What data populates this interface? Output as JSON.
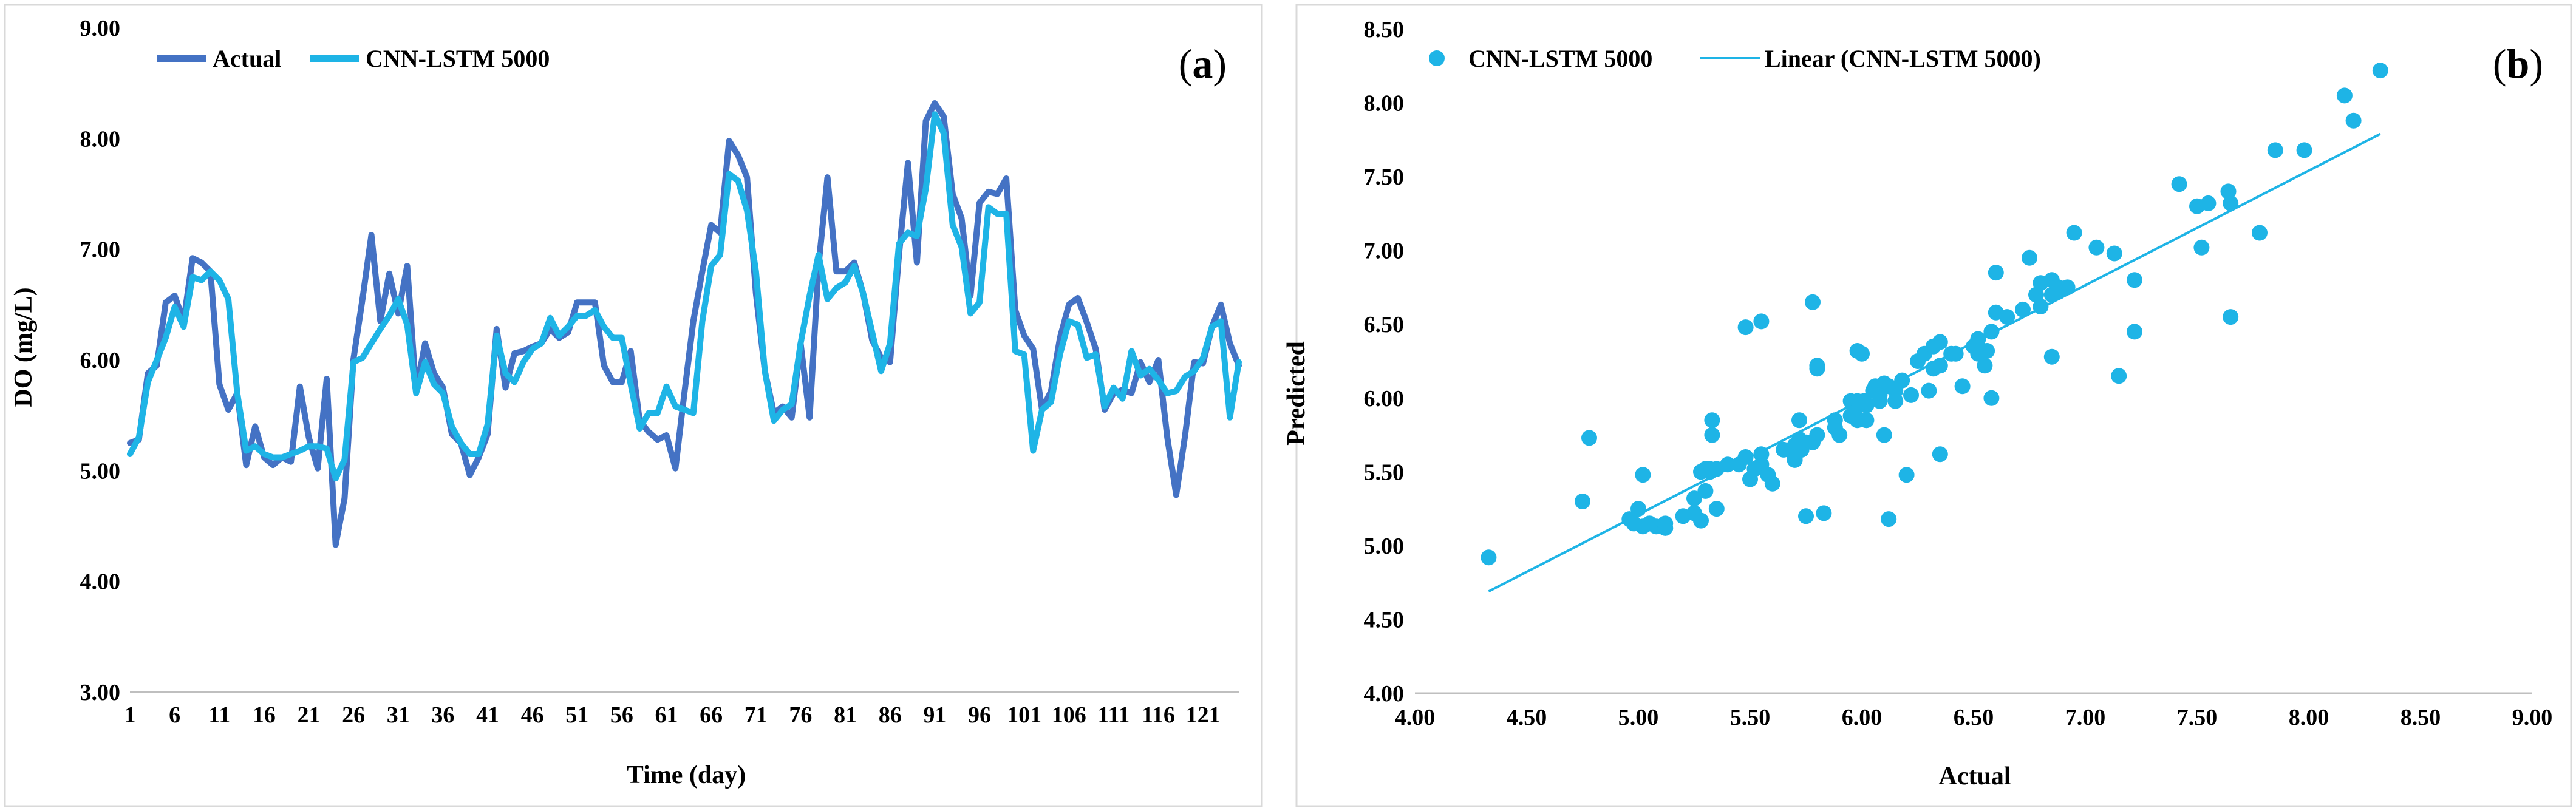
{
  "panels": [
    {
      "label_prefix": "(",
      "label_letter": "a",
      "label_suffix": ")",
      "chart_ref": 0
    },
    {
      "label_prefix": "(",
      "label_letter": "b",
      "label_suffix": ")",
      "chart_ref": 1
    }
  ],
  "chart_data": [
    {
      "type": "line",
      "title": "",
      "xlabel": "Time (day)",
      "ylabel": "DO (mg/L)",
      "ylim": [
        3.0,
        9.0
      ],
      "yticks": [
        "3.00",
        "4.00",
        "5.00",
        "6.00",
        "7.00",
        "8.00",
        "9.00"
      ],
      "xticks": [
        "1",
        "6",
        "11",
        "16",
        "21",
        "26",
        "31",
        "36",
        "41",
        "46",
        "51",
        "56",
        "61",
        "66",
        "71",
        "76",
        "81",
        "86",
        "91",
        "96",
        "101",
        "106",
        "111",
        "116",
        "121"
      ],
      "x_start": 1,
      "x_end": 125,
      "legend": "top-left",
      "series": [
        {
          "name": "Actual",
          "color": "#4472C4",
          "values": [
            5.25,
            5.28,
            5.88,
            5.95,
            6.52,
            6.58,
            6.35,
            6.92,
            6.88,
            6.8,
            5.78,
            5.55,
            5.7,
            5.05,
            5.4,
            5.12,
            5.05,
            5.12,
            5.08,
            5.76,
            5.3,
            5.02,
            5.83,
            4.33,
            4.75,
            6.01,
            6.55,
            7.13,
            6.35,
            6.78,
            6.42,
            6.85,
            5.72,
            6.15,
            5.88,
            5.75,
            5.33,
            5.25,
            4.96,
            5.12,
            5.33,
            6.28,
            5.75,
            6.06,
            6.08,
            6.12,
            6.15,
            6.28,
            6.2,
            6.25,
            6.52,
            6.52,
            6.52,
            5.95,
            5.8,
            5.8,
            6.08,
            5.45,
            5.35,
            5.28,
            5.32,
            5.02,
            5.7,
            6.35,
            6.8,
            7.22,
            7.15,
            7.98,
            7.85,
            7.65,
            6.6,
            5.9,
            5.52,
            5.58,
            5.48,
            6.15,
            5.48,
            6.85,
            7.65,
            6.8,
            6.8,
            6.88,
            6.6,
            6.18,
            6.02,
            5.98,
            6.95,
            7.78,
            6.88,
            8.16,
            8.32,
            8.2,
            7.5,
            7.28,
            6.58,
            7.42,
            7.52,
            7.5,
            7.64,
            6.45,
            6.22,
            6.1,
            5.55,
            5.72,
            6.2,
            6.5,
            6.56,
            6.34,
            6.1,
            5.55,
            5.7,
            5.73,
            5.7,
            5.98,
            5.8,
            6.0,
            5.3,
            4.78,
            5.32,
            5.98,
            5.97,
            6.3,
            6.5,
            6.15,
            5.95
          ]
        },
        {
          "name": "CNN-LSTM 5000",
          "color": "#1EB4E6",
          "values": [
            5.15,
            5.3,
            5.8,
            6.0,
            6.2,
            6.48,
            6.3,
            6.75,
            6.72,
            6.8,
            6.72,
            6.55,
            5.7,
            5.18,
            5.22,
            5.15,
            5.12,
            5.12,
            5.15,
            5.18,
            5.22,
            5.22,
            5.2,
            4.93,
            5.1,
            5.98,
            6.02,
            6.15,
            6.28,
            6.4,
            6.55,
            6.32,
            5.7,
            5.98,
            5.78,
            5.7,
            5.4,
            5.25,
            5.15,
            5.15,
            5.42,
            6.22,
            5.88,
            5.8,
            5.98,
            6.1,
            6.15,
            6.38,
            6.22,
            6.3,
            6.4,
            6.4,
            6.45,
            6.3,
            6.2,
            6.2,
            5.78,
            5.38,
            5.52,
            5.52,
            5.76,
            5.58,
            5.55,
            5.52,
            6.35,
            6.85,
            6.95,
            7.68,
            7.62,
            7.35,
            6.8,
            5.9,
            5.45,
            5.55,
            5.6,
            6.15,
            6.58,
            6.95,
            6.55,
            6.65,
            6.7,
            6.85,
            6.6,
            6.25,
            5.9,
            6.15,
            7.05,
            7.15,
            7.12,
            7.55,
            8.22,
            8.05,
            7.22,
            7.02,
            6.42,
            6.52,
            7.38,
            7.32,
            7.32,
            6.08,
            6.05,
            5.18,
            5.55,
            5.62,
            6.05,
            6.35,
            6.32,
            6.02,
            6.05,
            5.58,
            5.75,
            5.65,
            6.08,
            5.86,
            5.92,
            5.82,
            5.7,
            5.72,
            5.85,
            5.9,
            6.02,
            6.3,
            6.35,
            5.48,
            5.98
          ]
        }
      ]
    },
    {
      "type": "scatter",
      "title": "",
      "xlabel": "Actual",
      "ylabel": "Predicted",
      "xlim": [
        4.0,
        9.0
      ],
      "ylim": [
        4.0,
        8.5
      ],
      "xticks": [
        "4.00",
        "4.50",
        "5.00",
        "5.50",
        "6.00",
        "6.50",
        "7.00",
        "7.50",
        "8.00",
        "8.50",
        "9.00"
      ],
      "yticks": [
        "4.00",
        "4.50",
        "5.00",
        "5.50",
        "6.00",
        "6.50",
        "7.00",
        "7.50",
        "8.00",
        "8.50"
      ],
      "legend": "top-left",
      "series": [
        {
          "name": "CNN-LSTM 5000",
          "color": "#1EB4E6",
          "points": [
            [
              4.33,
              4.92
            ],
            [
              4.75,
              5.3
            ],
            [
              4.78,
              5.73
            ],
            [
              4.96,
              5.18
            ],
            [
              4.98,
              5.15
            ],
            [
              5.0,
              5.25
            ],
            [
              5.02,
              5.13
            ],
            [
              5.02,
              5.48
            ],
            [
              5.05,
              5.15
            ],
            [
              5.05,
              5.15
            ],
            [
              5.08,
              5.13
            ],
            [
              5.12,
              5.12
            ],
            [
              5.12,
              5.12
            ],
            [
              5.12,
              5.15
            ],
            [
              5.2,
              5.2
            ],
            [
              5.25,
              5.32
            ],
            [
              5.25,
              5.22
            ],
            [
              5.28,
              5.17
            ],
            [
              5.28,
              5.5
            ],
            [
              5.3,
              5.37
            ],
            [
              5.3,
              5.52
            ],
            [
              5.32,
              5.5
            ],
            [
              5.32,
              5.52
            ],
            [
              5.33,
              5.75
            ],
            [
              5.33,
              5.85
            ],
            [
              5.35,
              5.52
            ],
            [
              5.35,
              5.25
            ],
            [
              5.4,
              5.55
            ],
            [
              5.45,
              5.55
            ],
            [
              5.48,
              6.48
            ],
            [
              5.48,
              5.6
            ],
            [
              5.5,
              5.45
            ],
            [
              5.52,
              5.52
            ],
            [
              5.55,
              6.52
            ],
            [
              5.55,
              5.62
            ],
            [
              5.55,
              5.55
            ],
            [
              5.58,
              5.48
            ],
            [
              5.6,
              5.42
            ],
            [
              5.65,
              5.65
            ],
            [
              5.7,
              5.58
            ],
            [
              5.7,
              5.68
            ],
            [
              5.7,
              5.62
            ],
            [
              5.7,
              5.6
            ],
            [
              5.72,
              5.85
            ],
            [
              5.72,
              5.72
            ],
            [
              5.73,
              5.65
            ],
            [
              5.75,
              5.7
            ],
            [
              5.75,
              5.2
            ],
            [
              5.78,
              6.65
            ],
            [
              5.78,
              5.7
            ],
            [
              5.8,
              6.2
            ],
            [
              5.8,
              6.22
            ],
            [
              5.8,
              5.75
            ],
            [
              5.83,
              5.22
            ],
            [
              5.88,
              5.85
            ],
            [
              5.88,
              5.8
            ],
            [
              5.9,
              5.75
            ],
            [
              5.95,
              5.98
            ],
            [
              5.95,
              5.88
            ],
            [
              5.97,
              5.92
            ],
            [
              5.98,
              5.98
            ],
            [
              5.98,
              5.85
            ],
            [
              5.98,
              6.32
            ],
            [
              6.0,
              6.3
            ],
            [
              6.01,
              5.98
            ],
            [
              6.02,
              5.85
            ],
            [
              6.02,
              5.95
            ],
            [
              6.05,
              6.05
            ],
            [
              6.06,
              6.08
            ],
            [
              6.08,
              5.98
            ],
            [
              6.08,
              6.02
            ],
            [
              6.1,
              5.75
            ],
            [
              6.1,
              6.1
            ],
            [
              6.12,
              6.08
            ],
            [
              6.12,
              5.18
            ],
            [
              6.15,
              6.05
            ],
            [
              6.15,
              5.98
            ],
            [
              6.18,
              6.12
            ],
            [
              6.2,
              5.48
            ],
            [
              6.22,
              6.02
            ],
            [
              6.25,
              6.25
            ],
            [
              6.28,
              6.3
            ],
            [
              6.3,
              6.05
            ],
            [
              6.32,
              6.2
            ],
            [
              6.32,
              6.35
            ],
            [
              6.35,
              6.38
            ],
            [
              6.35,
              6.22
            ],
            [
              6.35,
              5.62
            ],
            [
              6.4,
              6.3
            ],
            [
              6.42,
              6.3
            ],
            [
              6.45,
              6.08
            ],
            [
              6.5,
              6.35
            ],
            [
              6.52,
              6.4
            ],
            [
              6.52,
              6.3
            ],
            [
              6.55,
              6.22
            ],
            [
              6.56,
              6.32
            ],
            [
              6.58,
              6.45
            ],
            [
              6.58,
              6.0
            ],
            [
              6.6,
              6.58
            ],
            [
              6.6,
              6.85
            ],
            [
              6.65,
              6.55
            ],
            [
              6.72,
              6.6
            ],
            [
              6.75,
              6.95
            ],
            [
              6.78,
              6.7
            ],
            [
              6.8,
              6.78
            ],
            [
              6.8,
              6.62
            ],
            [
              6.85,
              6.7
            ],
            [
              6.85,
              6.28
            ],
            [
              6.85,
              6.8
            ],
            [
              6.88,
              6.72
            ],
            [
              6.88,
              6.75
            ],
            [
              6.92,
              6.75
            ],
            [
              6.95,
              7.12
            ],
            [
              7.05,
              7.02
            ],
            [
              7.13,
              6.98
            ],
            [
              7.15,
              6.15
            ],
            [
              7.22,
              6.8
            ],
            [
              7.22,
              6.45
            ],
            [
              7.42,
              7.45
            ],
            [
              7.5,
              7.3
            ],
            [
              7.52,
              7.02
            ],
            [
              7.55,
              7.32
            ],
            [
              7.64,
              7.4
            ],
            [
              7.65,
              7.32
            ],
            [
              7.65,
              6.55
            ],
            [
              7.78,
              7.12
            ],
            [
              7.85,
              7.68
            ],
            [
              7.98,
              7.68
            ],
            [
              8.16,
              8.05
            ],
            [
              8.2,
              7.88
            ],
            [
              8.32,
              8.22
            ]
          ]
        },
        {
          "name": "Linear (CNN-LSTM 5000)",
          "color": "#1EB4E6",
          "type": "trendline",
          "from": [
            4.33,
            4.69
          ],
          "to": [
            8.32,
            7.79
          ]
        }
      ]
    }
  ]
}
